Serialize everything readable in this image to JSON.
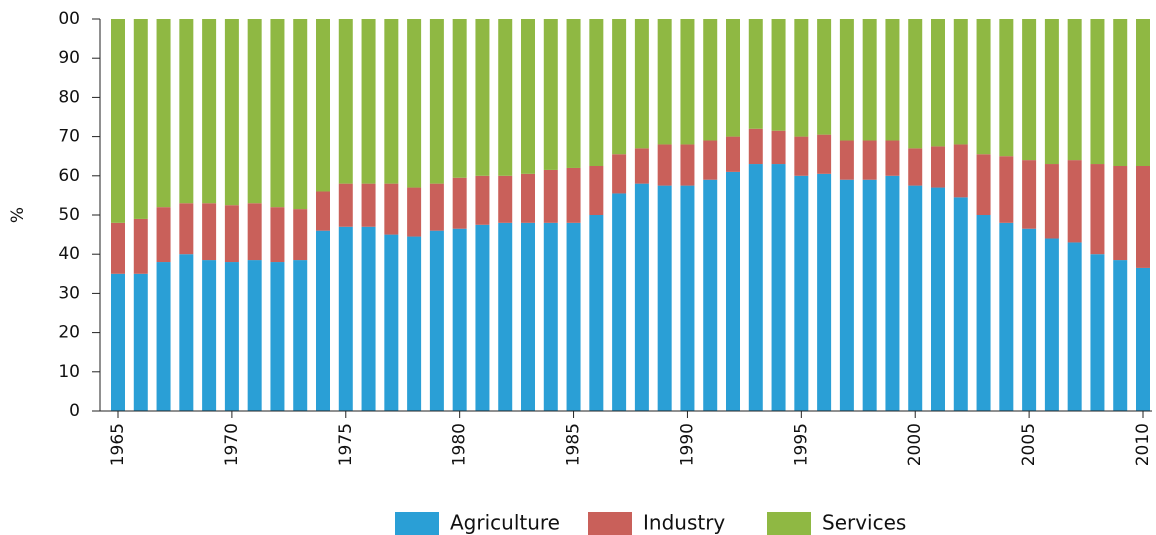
{
  "chart_data": {
    "type": "stacked-bar",
    "y_label": "%",
    "categories": [
      "1965",
      null,
      null,
      null,
      null,
      "1970",
      null,
      null,
      null,
      null,
      "1975",
      null,
      null,
      null,
      null,
      "1980",
      null,
      null,
      null,
      null,
      "1985",
      null,
      null,
      null,
      null,
      "1990",
      null,
      null,
      null,
      null,
      "1995",
      null,
      null,
      null,
      null,
      "2000",
      null,
      null,
      null,
      null,
      "2005",
      null,
      null,
      null,
      null,
      "2010"
    ],
    "series": [
      {
        "name": "Agriculture",
        "color": "#2a9fd6",
        "values": [
          35,
          35,
          38,
          40,
          38.5,
          38,
          38.5,
          38,
          38.5,
          46,
          47,
          47,
          45,
          44.5,
          46,
          46.5,
          47.5,
          48,
          48,
          48,
          48,
          50,
          55.5,
          58,
          57.5,
          57.5,
          59,
          61,
          63,
          63,
          60,
          60.5,
          59,
          59,
          60,
          57.5,
          57,
          54.5,
          50,
          48,
          46.5,
          44,
          43,
          40,
          38.5,
          36.5
        ]
      },
      {
        "name": "Industry",
        "color": "#c9605a",
        "values": [
          13,
          14,
          14,
          13,
          14.5,
          14.5,
          14.5,
          14,
          13,
          10,
          11,
          11,
          13,
          12.5,
          12,
          13,
          12.5,
          12,
          12.5,
          13.5,
          14,
          12.5,
          10,
          9,
          10.5,
          10.5,
          10,
          9,
          9,
          8.5,
          10,
          10,
          10,
          10,
          9,
          9.5,
          10.5,
          13.5,
          15.5,
          17,
          17.5,
          19,
          21,
          23,
          24,
          26
        ]
      },
      {
        "name": "Services",
        "color": "#8fb843",
        "values": [
          52,
          51,
          48,
          47,
          47,
          47.5,
          47,
          48,
          48.5,
          44,
          42,
          42,
          42,
          43,
          42,
          40.5,
          40,
          40,
          39.5,
          38.5,
          38,
          37.5,
          34.5,
          33,
          32,
          32,
          31,
          30,
          28,
          28.5,
          30,
          29.5,
          31,
          31,
          31,
          33,
          32.5,
          32,
          34.5,
          35,
          36,
          37,
          36,
          37,
          37.5,
          37.5
        ]
      }
    ],
    "ylim": [
      0,
      100
    ],
    "yticks": [
      0,
      10,
      20,
      30,
      40,
      50,
      60,
      70,
      80,
      90,
      {
        "value": 100,
        "label": "00"
      }
    ]
  }
}
